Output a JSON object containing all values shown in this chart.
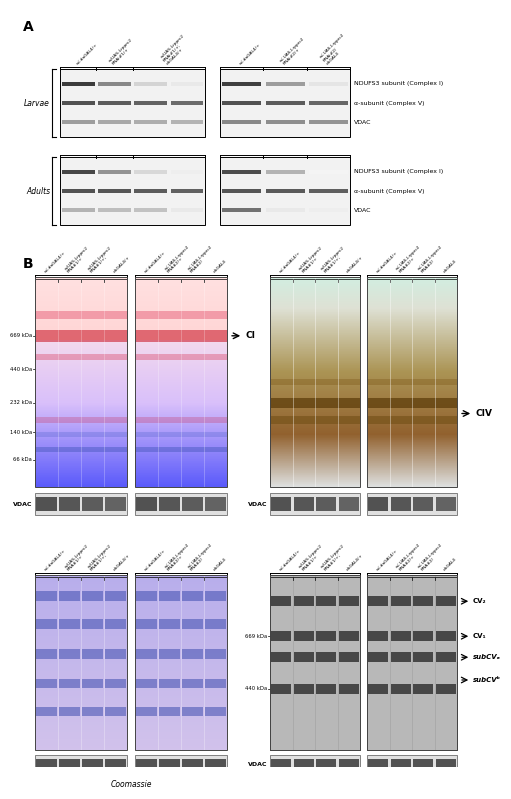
{
  "panel_A_band_labels": [
    "NDUFS3 subunit (Complex I)",
    "α-subunit (Complex V)",
    "VDAC"
  ],
  "panel_B_label_CI": "CI",
  "panel_B_label_CIV": "CIV",
  "kda_labels_CI": [
    "669 kDa",
    "440 kDa",
    "232 kDa",
    "140 kDa",
    "66 kDa"
  ],
  "kda_labels_CV": [
    "669 kDa",
    "440 kDa"
  ],
  "panel_CV_labels": [
    "CV₂",
    "CV₁",
    "subCVₐ",
    "subCVᵇ"
  ],
  "coomassie_label": "Coomassie",
  "bg_color": "#ffffff",
  "larvae_label": "Larvae",
  "adults_label": "Adults",
  "vdac_label": "VDAC",
  "A_left_col_labels": [
    "w;;daGAL4/+",
    "w;UAS-Lrpprc2\nRNAi#1/+",
    "w;UAS-Lrpprc2\nRNAi#1/+;\ndaGAL4/+"
  ],
  "A_right_col_labels": [
    "w;;daGAL4/+",
    "w;;UAS-Lrpprc2\nRNAi#2/+",
    "w;;UAS-Lrpprc2\nRNAi#2/daGAL4"
  ],
  "B_col_labels_g1": [
    "w;;daGAL4/+",
    "w;UAS-Lrpprc2\nRNA#1/+",
    "w;UAS-Lrpprc2\nRNA#1/+;",
    "daGAL4/+"
  ],
  "B_col_labels_g2": [
    "w;;daGAL4/+",
    "w;;UAS-Lrpprc2\nRNA#2/+",
    "w;;UAS-Lrpprc2\nRNA#2/",
    "daGAL4"
  ]
}
